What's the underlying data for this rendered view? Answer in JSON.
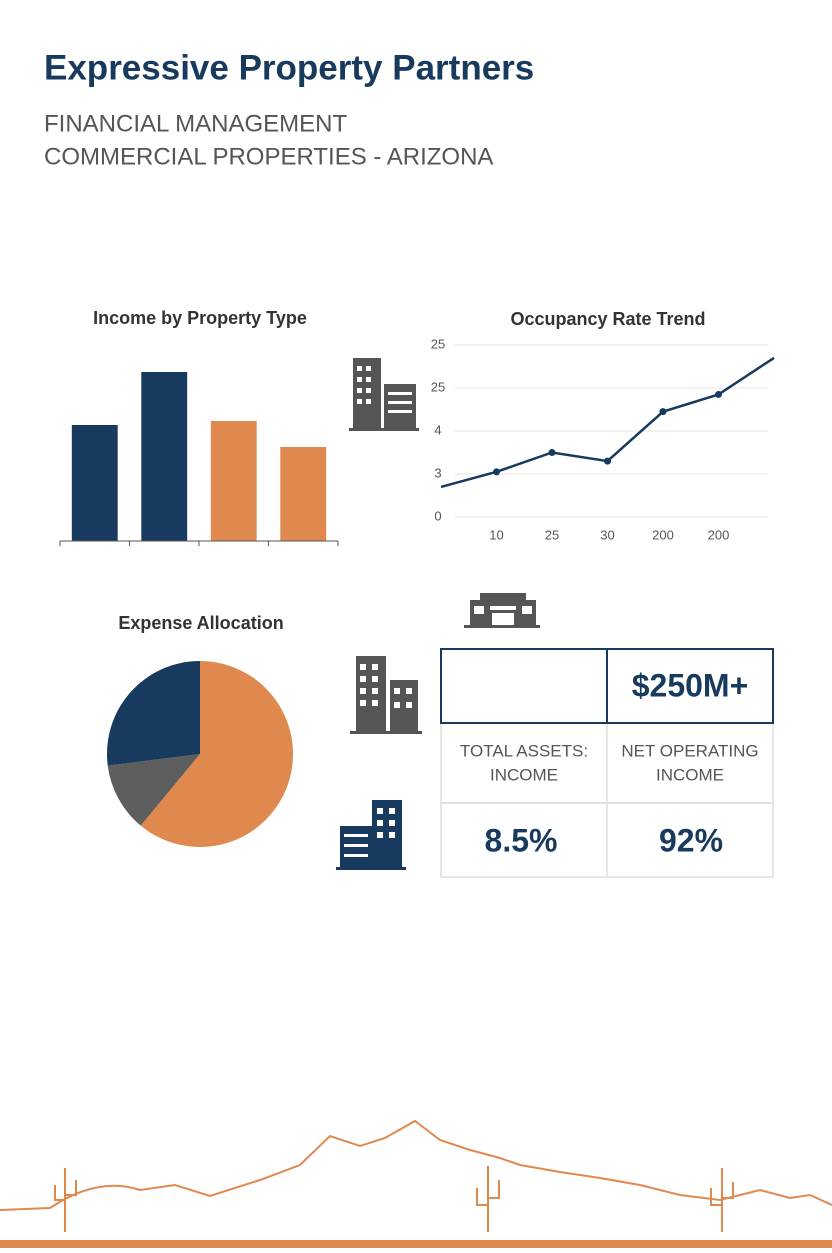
{
  "header": {
    "title": "Expressive Property Partners",
    "subtitle": "FINANCIAL MANAGEMENT",
    "tagline": "COMMERCIAL PROPERTIES - ARIZONA"
  },
  "chart_data": [
    {
      "type": "bar",
      "title": "Income by Property Type",
      "values": [
        116,
        169,
        120,
        94
      ],
      "colors": [
        "#173a5e",
        "#173a5e",
        "#e0894f",
        "#e0894f"
      ],
      "ylim": [
        0,
        180
      ]
    },
    {
      "type": "line",
      "title": "Occupancy Rate Trend",
      "categories": [
        null,
        "10",
        "25",
        "30",
        "200",
        "200",
        null
      ],
      "values": [
        0.7,
        1.05,
        1.5,
        1.3,
        2.45,
        2.85,
        3.7
      ],
      "color": "#173a5e",
      "ylim": [
        0,
        4
      ],
      "yticks": [
        0,
        {
          "value": 1,
          "label": "3"
        },
        {
          "value": 2,
          "label": "4"
        },
        {
          "value": 3,
          "label": "25"
        },
        {
          "value": 4,
          "label": "25"
        }
      ],
      "grid": true
    },
    {
      "type": "pie",
      "title": "Expense Allocation",
      "values": [
        61,
        12,
        27
      ],
      "colors": [
        "#e0894f",
        "#5e5e5e",
        "#173a5e"
      ]
    }
  ],
  "kpi": {
    "top_value": "$250M+",
    "labels": [
      "TOTAL ASSETS:",
      "INCOME",
      "NET OPERATING",
      "INCOME"
    ],
    "values": [
      "8.5%",
      "92%"
    ]
  }
}
